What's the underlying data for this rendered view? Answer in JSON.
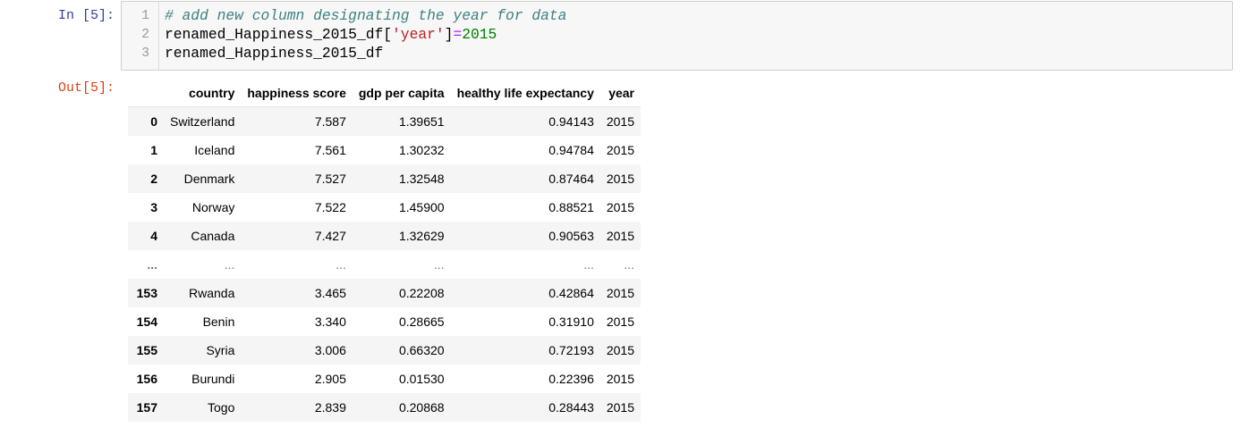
{
  "cell": {
    "input_prompt": "In [5]:",
    "output_prompt": "Out[5]:",
    "line_numbers": [
      "1",
      "2",
      "3"
    ],
    "code": {
      "line1_comment": "# add new column designating the year for data",
      "line2_var": "renamed_Happiness_2015_df[",
      "line2_str": "'year'",
      "line2_close": "]",
      "line2_op": "=",
      "line2_num": "2015",
      "line3": "renamed_Happiness_2015_df"
    }
  },
  "dataframe": {
    "columns": [
      "country",
      "happiness score",
      "gdp per capita",
      "healthy life expectancy",
      "year"
    ],
    "rows": [
      {
        "index": "0",
        "cells": [
          "Switzerland",
          "7.587",
          "1.39651",
          "0.94143",
          "2015"
        ]
      },
      {
        "index": "1",
        "cells": [
          "Iceland",
          "7.561",
          "1.30232",
          "0.94784",
          "2015"
        ]
      },
      {
        "index": "2",
        "cells": [
          "Denmark",
          "7.527",
          "1.32548",
          "0.87464",
          "2015"
        ]
      },
      {
        "index": "3",
        "cells": [
          "Norway",
          "7.522",
          "1.45900",
          "0.88521",
          "2015"
        ]
      },
      {
        "index": "4",
        "cells": [
          "Canada",
          "7.427",
          "1.32629",
          "0.90563",
          "2015"
        ]
      },
      {
        "index": "...",
        "cells": [
          "...",
          "...",
          "...",
          "...",
          "..."
        ]
      },
      {
        "index": "153",
        "cells": [
          "Rwanda",
          "3.465",
          "0.22208",
          "0.42864",
          "2015"
        ]
      },
      {
        "index": "154",
        "cells": [
          "Benin",
          "3.340",
          "0.28665",
          "0.31910",
          "2015"
        ]
      },
      {
        "index": "155",
        "cells": [
          "Syria",
          "3.006",
          "0.66320",
          "0.72193",
          "2015"
        ]
      },
      {
        "index": "156",
        "cells": [
          "Burundi",
          "2.905",
          "0.01530",
          "0.22396",
          "2015"
        ]
      },
      {
        "index": "157",
        "cells": [
          "Togo",
          "2.839",
          "0.20868",
          "0.28443",
          "2015"
        ]
      }
    ]
  }
}
